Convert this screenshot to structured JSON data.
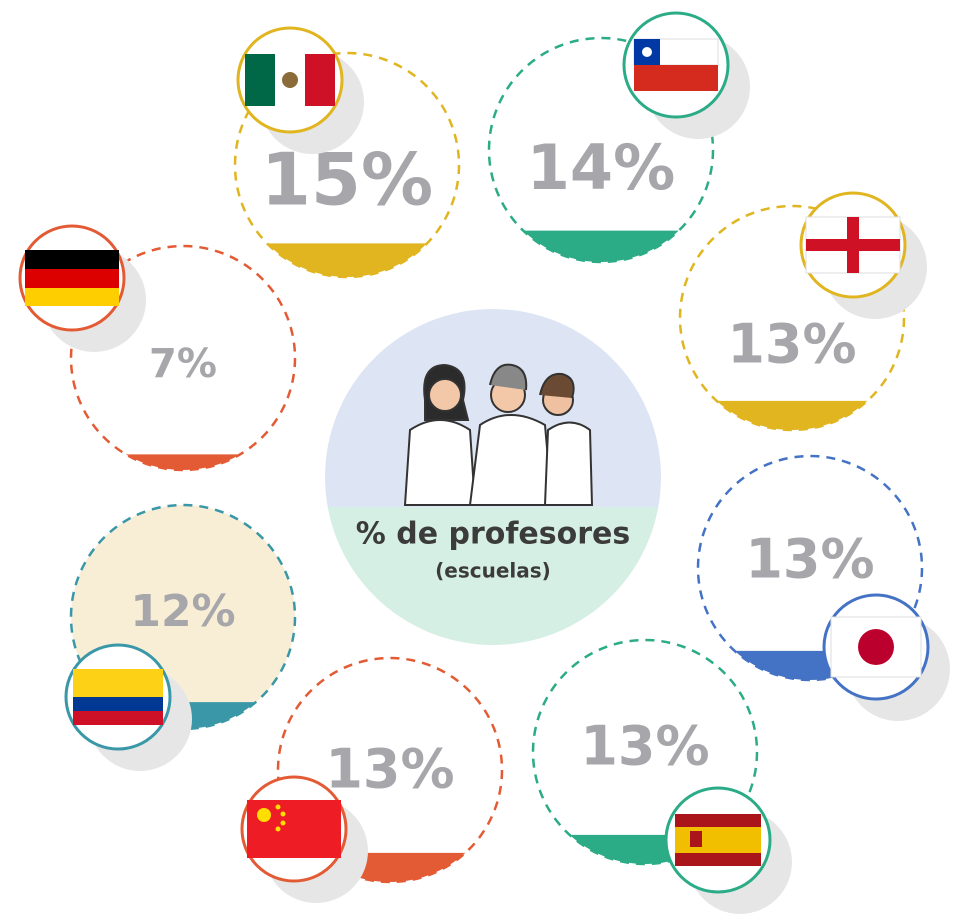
{
  "chart_data": {
    "type": "percent-circles",
    "title": "% de profesores",
    "subtitle": "(escuelas)",
    "values": [
      15,
      14,
      13,
      7,
      12,
      13,
      13,
      13
    ],
    "value_labels": [
      "15%",
      "14%",
      "13%",
      "7%",
      "12%",
      "13%",
      "13%",
      "13%"
    ],
    "colors": [
      "#e0b520",
      "#2bab86",
      "#e0b520",
      "#e35b34",
      "#3a97a8",
      "#4472c4",
      "#e35b34",
      "#2bab86"
    ]
  }
}
